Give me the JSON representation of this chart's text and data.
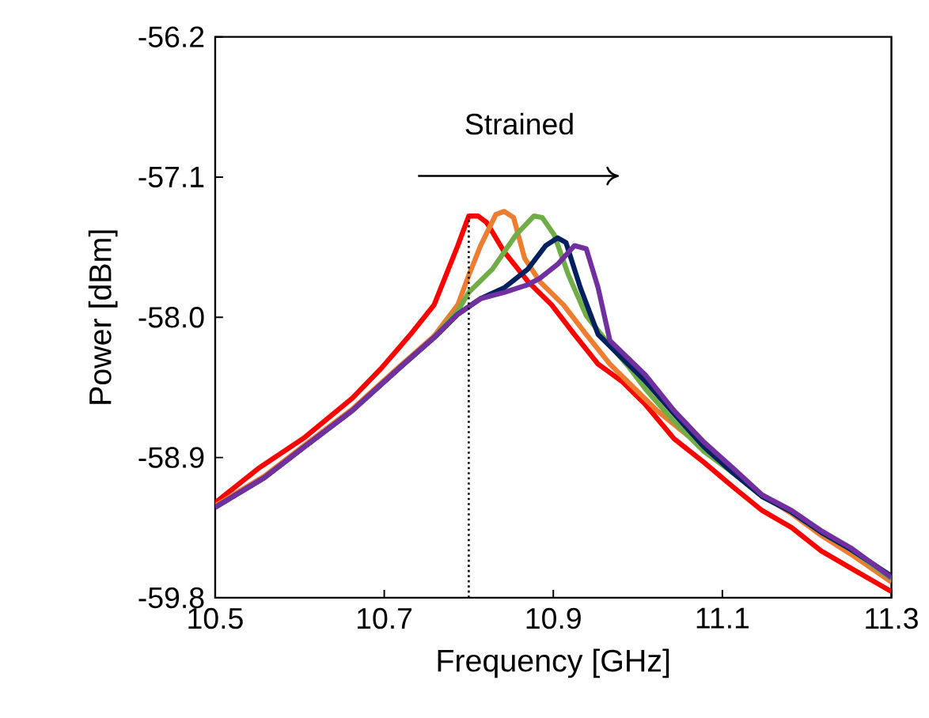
{
  "chart_data": {
    "type": "line",
    "xlabel": "Frequency [GHz]",
    "ylabel": "Power [dBm]",
    "xlim": [
      10.5,
      11.3
    ],
    "xticks": [
      10.5,
      10.7,
      10.9,
      11.1,
      11.3
    ],
    "ylim": [
      -59.8,
      -56.2
    ],
    "yticks": [
      {
        "value": -59.8,
        "label": "-59.8"
      },
      {
        "value": -58.9,
        "label": "-58.9"
      },
      {
        "value": -58.0,
        "label": "-58.0"
      },
      {
        "value": -57.1,
        "label": "-57.1"
      },
      {
        "value": -56.2,
        "label": "-56.2"
      }
    ],
    "grid": false,
    "marker": "none",
    "line_style": "solid",
    "annotations": [
      "Strained"
    ],
    "ref_lines": [
      {
        "axis": "x",
        "value": 10.8,
        "color": "#000000",
        "line_style": "dotted"
      }
    ],
    "series": [
      {
        "color": "#ff0000",
        "x": [
          10.5,
          10.551,
          10.606,
          10.662,
          10.696,
          10.731,
          10.759,
          10.787,
          10.8,
          10.811,
          10.821,
          10.842,
          10.87,
          10.898,
          10.925,
          10.953,
          10.981,
          11.009,
          11.043,
          11.078,
          11.113,
          11.147,
          11.182,
          11.217,
          11.252,
          11.3
        ],
        "values": [
          -59.19,
          -58.97,
          -58.77,
          -58.52,
          -58.33,
          -58.11,
          -57.92,
          -57.54,
          -57.35,
          -57.35,
          -57.39,
          -57.58,
          -57.77,
          -57.92,
          -58.11,
          -58.3,
          -58.41,
          -58.56,
          -58.78,
          -58.93,
          -59.09,
          -59.24,
          -59.35,
          -59.5,
          -59.61,
          -59.76
        ]
      },
      {
        "color": "#ed7d31",
        "x": [
          10.5,
          10.558,
          10.606,
          10.662,
          10.717,
          10.759,
          10.787,
          10.8,
          10.814,
          10.832,
          10.842,
          10.853,
          10.866,
          10.884,
          10.912,
          10.939,
          10.967,
          10.995,
          11.023,
          11.057,
          11.092,
          11.147,
          11.182,
          11.217,
          11.252,
          11.3
        ],
        "values": [
          -59.21,
          -59.02,
          -58.82,
          -58.59,
          -58.32,
          -58.12,
          -57.92,
          -57.73,
          -57.54,
          -57.34,
          -57.32,
          -57.36,
          -57.62,
          -57.77,
          -57.92,
          -58.11,
          -58.3,
          -58.45,
          -58.6,
          -58.75,
          -58.9,
          -59.14,
          -59.26,
          -59.4,
          -59.52,
          -59.7
        ]
      },
      {
        "color": "#70ad47",
        "x": [
          10.717,
          10.759,
          10.787,
          10.8,
          10.828,
          10.856,
          10.877,
          10.887,
          10.901,
          10.918,
          10.939,
          10.967,
          10.988,
          11.009,
          11.043,
          11.078,
          11.113,
          11.147,
          11.182,
          11.217,
          11.252,
          11.3
        ],
        "values": [
          -58.33,
          -58.13,
          -57.96,
          -57.84,
          -57.69,
          -57.47,
          -57.35,
          -57.36,
          -57.47,
          -57.73,
          -57.99,
          -58.18,
          -58.31,
          -58.46,
          -58.67,
          -58.86,
          -59.0,
          -59.15,
          -59.25,
          -59.38,
          -59.49,
          -59.68
        ]
      },
      {
        "color": "#002060",
        "x": [
          10.5,
          10.558,
          10.606,
          10.662,
          10.717,
          10.759,
          10.787,
          10.814,
          10.842,
          10.87,
          10.891,
          10.905,
          10.915,
          10.932,
          10.953,
          10.981,
          11.009,
          11.043,
          11.078,
          11.113,
          11.147,
          11.182,
          11.217,
          11.252,
          11.3
        ],
        "values": [
          -59.22,
          -59.03,
          -58.83,
          -58.6,
          -58.33,
          -58.13,
          -57.98,
          -57.88,
          -57.81,
          -57.69,
          -57.54,
          -57.49,
          -57.52,
          -57.81,
          -58.11,
          -58.26,
          -58.41,
          -58.62,
          -58.83,
          -59.0,
          -59.15,
          -59.25,
          -59.38,
          -59.49,
          -59.66
        ]
      },
      {
        "color": "#7030a0",
        "x": [
          10.5,
          10.558,
          10.606,
          10.662,
          10.717,
          10.759,
          10.787,
          10.814,
          10.842,
          10.87,
          10.884,
          10.905,
          10.925,
          10.939,
          10.953,
          10.967,
          10.988,
          11.009,
          11.043,
          11.078,
          11.113,
          11.147,
          11.182,
          11.217,
          11.252,
          11.3
        ],
        "values": [
          -59.22,
          -59.03,
          -58.83,
          -58.6,
          -58.33,
          -58.13,
          -57.98,
          -57.88,
          -57.84,
          -57.79,
          -57.75,
          -57.66,
          -57.54,
          -57.56,
          -57.81,
          -58.15,
          -58.26,
          -58.37,
          -58.6,
          -58.8,
          -58.97,
          -59.14,
          -59.24,
          -59.37,
          -59.48,
          -59.67
        ]
      }
    ]
  }
}
